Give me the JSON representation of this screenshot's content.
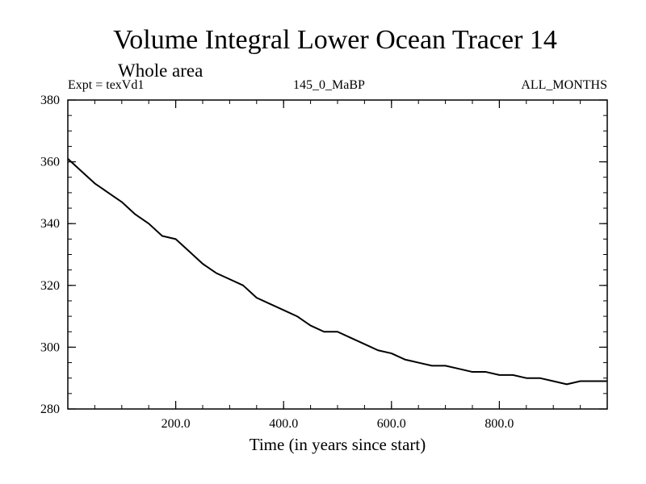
{
  "chart_data": {
    "type": "line",
    "title": "Volume Integral Lower Ocean Tracer 14",
    "subtitle": "Whole area",
    "experiment_label": "Expt = texVd1",
    "center_label": "145_0_MaBP",
    "right_label": "ALL_MONTHS",
    "xlabel": "Time (in years since start)",
    "ylabel": "",
    "xlim": [
      0,
      1000
    ],
    "ylim": [
      280,
      380
    ],
    "x_ticks": [
      200,
      400,
      600,
      800
    ],
    "x_tick_labels": [
      "200.0",
      "400.0",
      "600.0",
      "800.0"
    ],
    "y_ticks": [
      280,
      300,
      320,
      340,
      360,
      380
    ],
    "y_tick_labels": [
      "280",
      "300",
      "320",
      "340",
      "360",
      "380"
    ],
    "grid": false,
    "series": [
      {
        "name": "Volume Integral Lower Ocean Tracer 14",
        "color": "#000000",
        "x": [
          0,
          25,
          50,
          75,
          100,
          125,
          150,
          175,
          200,
          225,
          250,
          275,
          300,
          325,
          350,
          375,
          400,
          425,
          450,
          475,
          500,
          525,
          550,
          575,
          600,
          625,
          650,
          675,
          700,
          725,
          750,
          775,
          800,
          825,
          850,
          875,
          900,
          925,
          950,
          975,
          1000
        ],
        "y": [
          361,
          357,
          353,
          350,
          347,
          343,
          340,
          336,
          335,
          331,
          327,
          324,
          322,
          320,
          316,
          314,
          312,
          310,
          307,
          305,
          305,
          303,
          301,
          299,
          298,
          296,
          295,
          294,
          294,
          293,
          292,
          292,
          291,
          291,
          290,
          290,
          289,
          288,
          289,
          289,
          289
        ]
      }
    ]
  }
}
